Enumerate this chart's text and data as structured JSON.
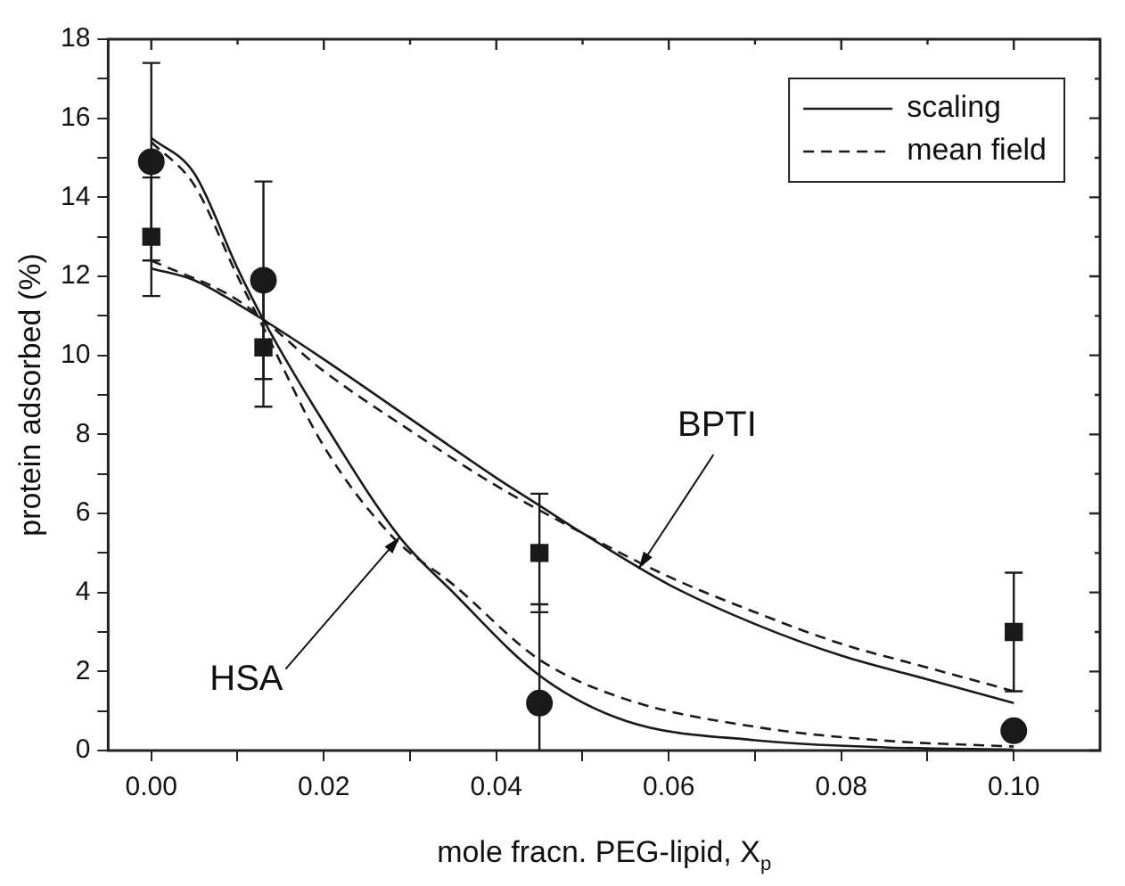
{
  "chart_data": {
    "type": "line",
    "xlabel": "mole fracn. PEG-lipid, X$_{p}$",
    "ylabel": "protein adsorbed (%)",
    "xlim": [
      -0.005,
      0.11
    ],
    "ylim": [
      0,
      18
    ],
    "xticks": [
      {
        "value": 0,
        "label": "0.00"
      },
      {
        "value": 0.01,
        "label": null
      },
      {
        "value": 0.02,
        "label": "0.02"
      },
      {
        "value": 0.03,
        "label": null
      },
      {
        "value": 0.04,
        "label": "0.04"
      },
      {
        "value": 0.05,
        "label": null
      },
      {
        "value": 0.06,
        "label": "0.06"
      },
      {
        "value": 0.07,
        "label": null
      },
      {
        "value": 0.08,
        "label": "0.08"
      },
      {
        "value": 0.09,
        "label": null
      },
      {
        "value": 0.1,
        "label": "0.10"
      }
    ],
    "yticks": [
      0,
      {
        "value": 1,
        "label": null
      },
      2,
      {
        "value": 3,
        "label": null
      },
      4,
      {
        "value": 5,
        "label": null
      },
      6,
      {
        "value": 7,
        "label": null
      },
      8,
      {
        "value": 9,
        "label": null
      },
      10,
      {
        "value": 11,
        "label": null
      },
      12,
      {
        "value": 13,
        "label": null
      },
      14,
      {
        "value": 15,
        "label": null
      },
      16,
      {
        "value": 17,
        "label": null
      },
      18
    ],
    "legend": "top right",
    "grid": false,
    "series": [
      {
        "name": "scaling",
        "line_style": "solid",
        "color": "#1a1a1a",
        "x": [
          0,
          0.005,
          0.01,
          0.013,
          0.02,
          0.0288,
          0.035,
          0.045,
          0.055,
          0.07,
          0.085,
          0.1
        ],
        "values": [
          15.5,
          14.6,
          12.2,
          10.9,
          8.3,
          5.4,
          4.0,
          1.9,
          0.75,
          0.26,
          0.08,
          0.02
        ]
      },
      {
        "name": "mean field",
        "line_style": "dashed",
        "color": "#1a1a1a",
        "x": [
          0,
          0.005,
          0.01,
          0.013,
          0.02,
          0.028,
          0.035,
          0.045,
          0.055,
          0.07,
          0.085,
          0.1
        ],
        "values": [
          15.4,
          14.3,
          12.0,
          10.7,
          7.7,
          5.4,
          4.2,
          2.3,
          1.3,
          0.6,
          0.25,
          0.1
        ]
      },
      {
        "line_style": "solid",
        "color": "#1a1a1a",
        "x": [
          0,
          0.005,
          0.01,
          0.013,
          0.02,
          0.03,
          0.04,
          0.045,
          0.05,
          0.06,
          0.07,
          0.08,
          0.09,
          0.1
        ],
        "values": [
          12.2,
          11.9,
          11.3,
          10.9,
          9.9,
          8.4,
          6.9,
          6.2,
          5.5,
          4.2,
          3.2,
          2.4,
          1.8,
          1.2
        ]
      },
      {
        "line_style": "dashed",
        "color": "#1a1a1a",
        "x": [
          0,
          0.01,
          0.02,
          0.03,
          0.04,
          0.05,
          0.06,
          0.07,
          0.08,
          0.09,
          0.1
        ],
        "values": [
          12.4,
          11.4,
          9.6,
          8.1,
          6.7,
          5.5,
          4.4,
          3.5,
          2.7,
          2.1,
          1.5
        ]
      },
      {
        "type": "scatter",
        "marker": "circle",
        "color": "#1a1a1a",
        "x": [
          0,
          0.013,
          0.045,
          0.1
        ],
        "values": [
          14.9,
          11.9,
          1.2,
          0.5
        ],
        "errors": [
          2.5,
          2.5,
          [
            0,
            3.7
          ],
          null
        ]
      },
      {
        "type": "scatter",
        "marker": "square",
        "color": "#1a1a1a",
        "x": [
          0,
          0.013,
          0.045,
          0.1
        ],
        "values": [
          13,
          10.2,
          5,
          3
        ],
        "errors": [
          1.5,
          1.5,
          1.5,
          1.5
        ]
      }
    ],
    "annotations": [
      {
        "text": "HSA",
        "x": 0.0288,
        "y": 5.4
      },
      {
        "text": "BPTI",
        "x": 0.0565,
        "y": 4.6
      }
    ]
  }
}
